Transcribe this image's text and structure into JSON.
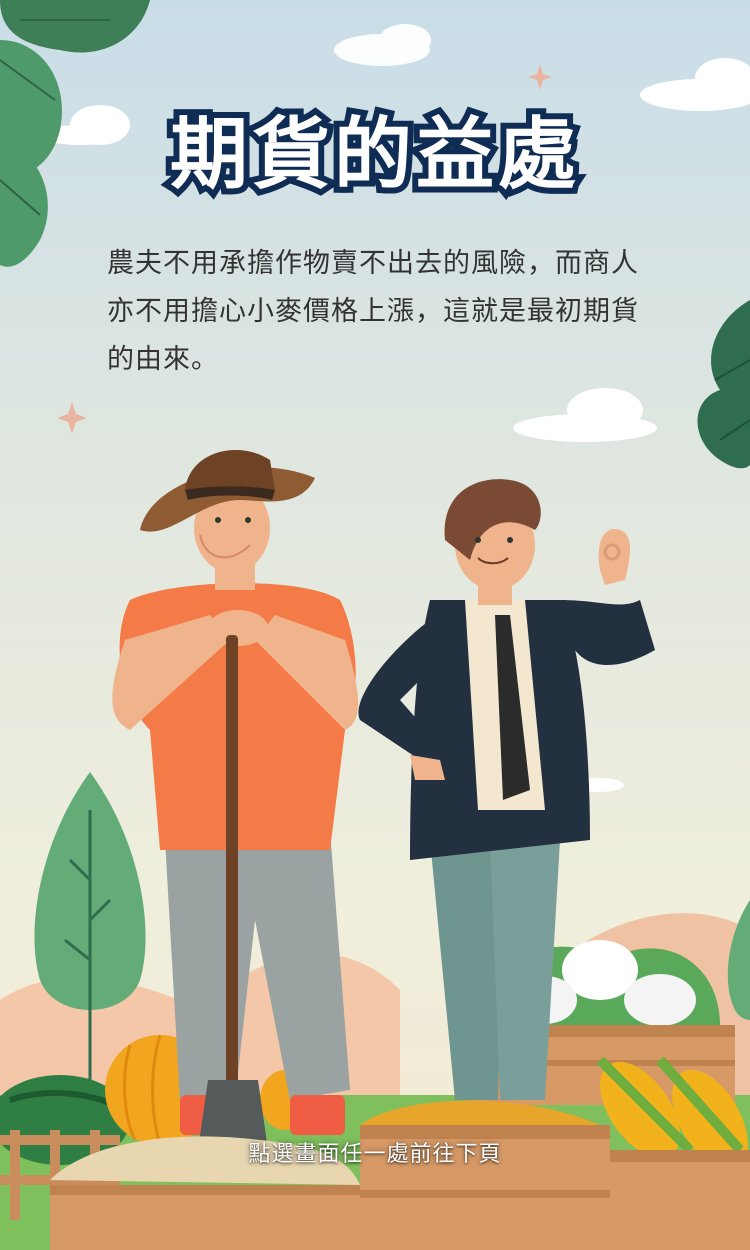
{
  "page": {
    "title": "期貨的益處",
    "body": "農夫不用承擔作物賣不出去的風險，而商人亦不用擔心小麥價格上漲，這就是最初期貨的由來。",
    "tap_hint": "點選畫面任一處前往下頁"
  },
  "icons": [
    "leaf-cluster-icon",
    "cloud-icon",
    "sparkle-icon",
    "farmer-illustration",
    "businessman-illustration",
    "tree-icon",
    "pumpkin-icon",
    "watermelon-icon",
    "cauliflower-icon",
    "corn-icon",
    "grain-crate-icon",
    "shovel-icon"
  ],
  "colors": {
    "title_fill": "#ffffff",
    "title_stroke": "#0f2c55",
    "body_text": "#333333",
    "leaf": "#4f9a6a",
    "shirt_orange": "#f47a48",
    "jacket": "#233040",
    "crate": "#d79a66"
  }
}
